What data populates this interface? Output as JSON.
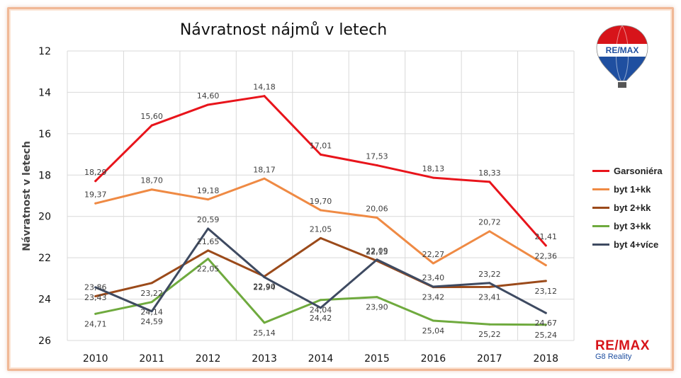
{
  "chart_data": {
    "type": "line",
    "title": "Návratnost nájmů v letech",
    "ylabel": "Návratnost v letech",
    "xlabel": "",
    "y_axis_reversed": true,
    "ylim": [
      12,
      26
    ],
    "yticks": [
      "12",
      "14",
      "16",
      "18",
      "20",
      "22",
      "24",
      "26"
    ],
    "grid": true,
    "legend_position": "right",
    "categories": [
      "2010",
      "2011",
      "2012",
      "2013",
      "2014",
      "2015",
      "2016",
      "2017",
      "2018"
    ],
    "series": [
      {
        "name": "Garsoniéra",
        "color": "#e8141b",
        "values": [
          18.29,
          15.6,
          14.6,
          14.18,
          17.01,
          17.53,
          18.13,
          18.33,
          21.41
        ],
        "labels": [
          "18,29",
          "15,60",
          "14,60",
          "14,18",
          "17,01",
          "17,53",
          "18,13",
          "18,33",
          "21,41"
        ]
      },
      {
        "name": "byt 1+kk",
        "color": "#ef8a44",
        "values": [
          19.37,
          18.7,
          19.18,
          18.17,
          19.7,
          20.06,
          22.27,
          20.72,
          22.36
        ],
        "labels": [
          "19,37",
          "18,70",
          "19,18",
          "18,17",
          "19,70",
          "20,06",
          "22,27",
          "20,72",
          "22,36"
        ]
      },
      {
        "name": "byt 2+kk",
        "color": "#9b4a1a",
        "values": [
          23.86,
          23.22,
          21.65,
          22.9,
          21.05,
          22.15,
          23.42,
          23.41,
          23.12
        ],
        "labels": [
          "23,86",
          "23,22",
          "21,65",
          "22,90",
          "21,05",
          "22,15",
          "23,42",
          "23,41",
          "23,12"
        ]
      },
      {
        "name": "byt 3+kk",
        "color": "#6faa3e",
        "values": [
          24.71,
          24.14,
          22.05,
          25.14,
          24.04,
          23.9,
          25.04,
          25.22,
          25.24
        ],
        "labels": [
          "24,71",
          "24,14",
          "22,05",
          "25,14",
          "24,04",
          "23,90",
          "25,04",
          "25,22",
          "25,24"
        ]
      },
      {
        "name": "byt 4+více",
        "color": "#3e4a61",
        "values": [
          23.43,
          24.59,
          20.59,
          22.94,
          24.42,
          22.09,
          23.4,
          23.22,
          24.67
        ],
        "labels": [
          "23,43",
          "24,59",
          "20,59",
          "22,94",
          "24,42",
          "22,09",
          "23,40",
          "23,22",
          "24,67"
        ]
      }
    ]
  },
  "logo": {
    "top_text": "RE/MAX",
    "brand": "RE/MAX",
    "brand_sub": "G8 Reality"
  }
}
